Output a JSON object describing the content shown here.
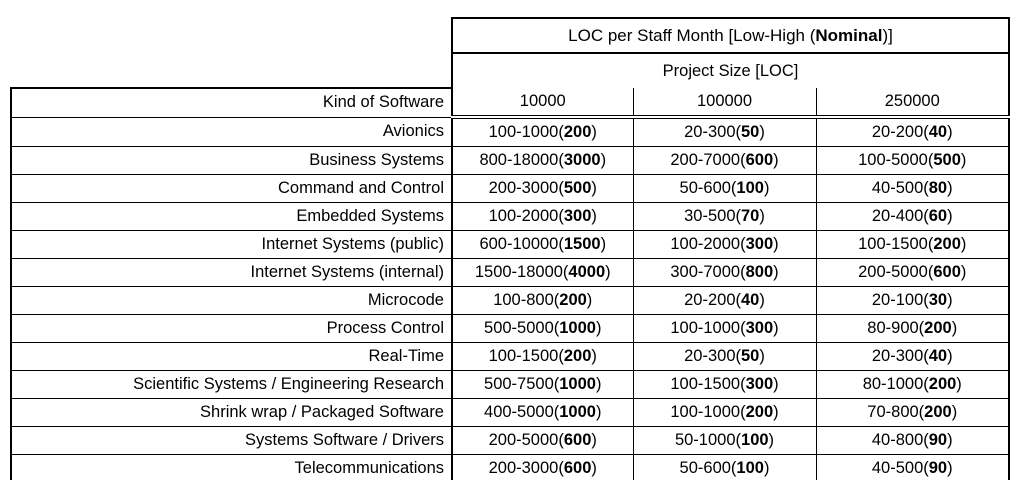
{
  "colors": {
    "text": "#000000",
    "background": "#ffffff",
    "border": "#000000"
  },
  "table": {
    "title": {
      "pre": "LOC per Staff Month [Low-High (",
      "bold": "Nominal",
      "post": ")]"
    },
    "project_size_label": "Project Size [LOC]",
    "kind_label": "Kind of Software",
    "size_columns": [
      "10000",
      "100000",
      "250000"
    ],
    "rows": [
      {
        "kind": "Avionics",
        "cells": [
          {
            "pre": "100-1000(",
            "bold": "200",
            "post": ")"
          },
          {
            "pre": "20-300(",
            "bold": "50",
            "post": ")"
          },
          {
            "pre": "20-200(",
            "bold": "40",
            "post": ")"
          }
        ]
      },
      {
        "kind": "Business Systems",
        "cells": [
          {
            "pre": "800-18000(",
            "bold": "3000",
            "post": ")"
          },
          {
            "pre": "200-7000(",
            "bold": "600",
            "post": ")"
          },
          {
            "pre": "100-5000(",
            "bold": "500",
            "post": ")"
          }
        ]
      },
      {
        "kind": "Command and Control",
        "cells": [
          {
            "pre": "200-3000(",
            "bold": "500",
            "post": ")"
          },
          {
            "pre": "50-600(",
            "bold": "100",
            "post": ")"
          },
          {
            "pre": "40-500(",
            "bold": "80",
            "post": ")"
          }
        ]
      },
      {
        "kind": "Embedded Systems",
        "cells": [
          {
            "pre": "100-2000(",
            "bold": "300",
            "post": ")"
          },
          {
            "pre": "30-500(",
            "bold": "70",
            "post": ")"
          },
          {
            "pre": "20-400(",
            "bold": "60",
            "post": ")"
          }
        ]
      },
      {
        "kind": "Internet Systems (public)",
        "cells": [
          {
            "pre": "600-10000(",
            "bold": "1500",
            "post": ")"
          },
          {
            "pre": "100-2000(",
            "bold": "300",
            "post": ")"
          },
          {
            "pre": "100-1500(",
            "bold": "200",
            "post": ")"
          }
        ]
      },
      {
        "kind": "Internet Systems (internal)",
        "cells": [
          {
            "pre": "1500-18000(",
            "bold": "4000",
            "post": ")"
          },
          {
            "pre": "300-7000(",
            "bold": "800",
            "post": ")"
          },
          {
            "pre": "200-5000(",
            "bold": "600",
            "post": ")"
          }
        ]
      },
      {
        "kind": "Microcode",
        "cells": [
          {
            "pre": "100-800(",
            "bold": "200",
            "post": ")"
          },
          {
            "pre": "20-200(",
            "bold": "40",
            "post": ")"
          },
          {
            "pre": "20-100(",
            "bold": "30",
            "post": ")"
          }
        ]
      },
      {
        "kind": "Process Control",
        "cells": [
          {
            "pre": "500-5000(",
            "bold": "1000",
            "post": ")"
          },
          {
            "pre": "100-1000(",
            "bold": "300",
            "post": ")"
          },
          {
            "pre": "80-900(",
            "bold": "200",
            "post": ")"
          }
        ]
      },
      {
        "kind": "Real-Time",
        "cells": [
          {
            "pre": "100-1500(",
            "bold": "200",
            "post": ")"
          },
          {
            "pre": "20-300(",
            "bold": "50",
            "post": ")"
          },
          {
            "pre": "20-300(",
            "bold": "40",
            "post": ")"
          }
        ]
      },
      {
        "kind": "Scientific Systems / Engineering Research",
        "cells": [
          {
            "pre": "500-7500(",
            "bold": "1000",
            "post": ")"
          },
          {
            "pre": "100-1500(",
            "bold": "300",
            "post": ")"
          },
          {
            "pre": "80-1000(",
            "bold": "200",
            "post": ")"
          }
        ]
      },
      {
        "kind": "Shrink wrap / Packaged Software",
        "cells": [
          {
            "pre": "400-5000(",
            "bold": "1000",
            "post": ")"
          },
          {
            "pre": "100-1000(",
            "bold": "200",
            "post": ")"
          },
          {
            "pre": "70-800(",
            "bold": "200",
            "post": ")"
          }
        ]
      },
      {
        "kind": "Systems Software / Drivers",
        "cells": [
          {
            "pre": "200-5000(",
            "bold": "600",
            "post": ")"
          },
          {
            "pre": "50-1000(",
            "bold": "100",
            "post": ")"
          },
          {
            "pre": "40-800(",
            "bold": "90",
            "post": ")"
          }
        ]
      },
      {
        "kind": "Telecommunications",
        "cells": [
          {
            "pre": "200-3000(",
            "bold": "600",
            "post": ")"
          },
          {
            "pre": "50-600(",
            "bold": "100",
            "post": ")"
          },
          {
            "pre": "40-500(",
            "bold": "90",
            "post": ")"
          }
        ]
      }
    ]
  }
}
